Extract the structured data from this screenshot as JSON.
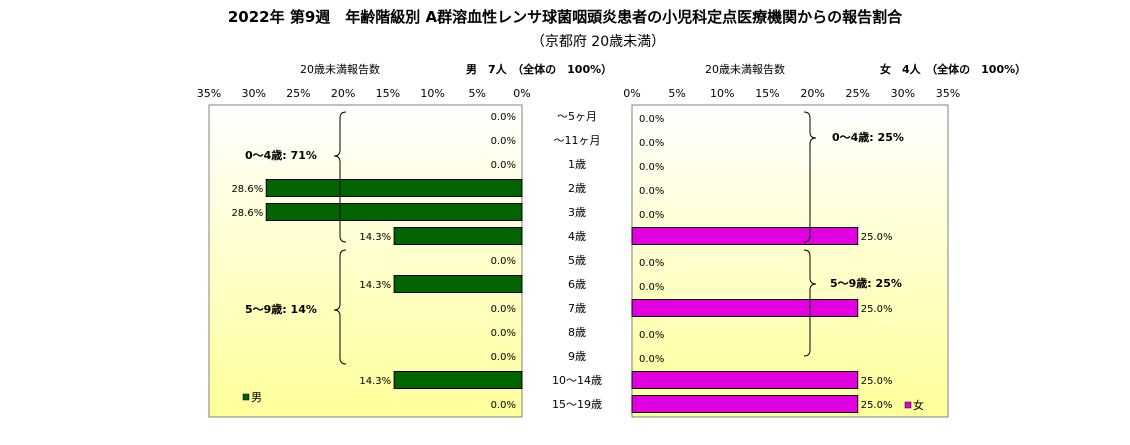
{
  "title": "2022年 第9週　年齢階級別 A群溶血性レンサ球菌咽頭炎患者の小児科定点医療機関からの報告割合",
  "subtitle": "（京都府 20歳未満）",
  "colors": {
    "male": "#006400",
    "female": "#e000e0",
    "plot_grad_top": "#ffffff",
    "plot_grad_bottom": "#ffff99"
  },
  "left_panel": {
    "header_label": "20歳未満報告数",
    "header_summary": "男　7人　（全体の　100%）",
    "legend": "男",
    "group_labels": [
      "0～4歳: 71%",
      "5～9歳: 14%"
    ]
  },
  "right_panel": {
    "header_label": "20歳未満報告数",
    "header_summary": "女　4人　（全体の　100%）",
    "legend": "女",
    "group_labels": [
      "0～4歳: 25%",
      "5～9歳: 25%"
    ]
  },
  "chart_data": {
    "type": "bar",
    "orientation": "horizontal-butterfly",
    "categories": [
      "～5ヶ月",
      "～11ヶ月",
      "1歳",
      "2歳",
      "3歳",
      "4歳",
      "5歳",
      "6歳",
      "7歳",
      "8歳",
      "9歳",
      "10～14歳",
      "15～19歳"
    ],
    "series": [
      {
        "name": "男",
        "values": [
          0,
          0,
          0,
          28.6,
          28.6,
          14.3,
          0,
          14.3,
          0,
          0,
          0,
          14.3,
          0
        ]
      },
      {
        "name": "女",
        "values": [
          0,
          0,
          0,
          0,
          0,
          25.0,
          0,
          0,
          25.0,
          0,
          0,
          25.0,
          25.0
        ]
      }
    ],
    "xlim": [
      0,
      35
    ],
    "ticks": [
      "35%",
      "30%",
      "25%",
      "20%",
      "15%",
      "10%",
      "5%",
      "0%",
      "0%",
      "5%",
      "10%",
      "15%",
      "20%",
      "25%",
      "30%",
      "35%"
    ],
    "value_format": "0.0%"
  }
}
